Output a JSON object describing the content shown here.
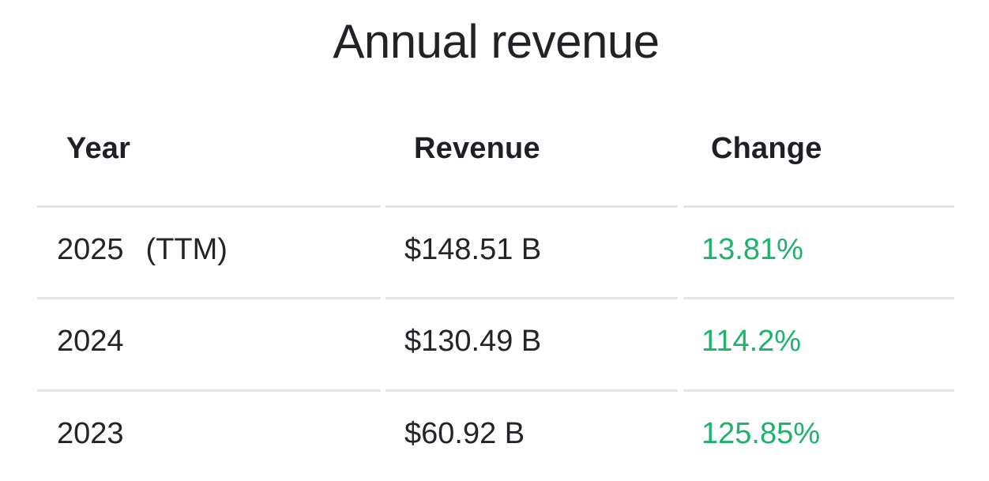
{
  "chart_data": {
    "type": "table",
    "title": "Annual revenue",
    "columns": [
      "Year",
      "Revenue",
      "Change"
    ],
    "rows": [
      {
        "year": "2025",
        "year_suffix": "(TTM)",
        "revenue": "$148.51 B",
        "change": "13.81%"
      },
      {
        "year": "2024",
        "year_suffix": "",
        "revenue": "$130.49 B",
        "change": "114.2%"
      },
      {
        "year": "2023",
        "year_suffix": "",
        "revenue": "$60.92 B",
        "change": "125.85%"
      }
    ],
    "colors": {
      "text": "#1f2127",
      "positive_change": "#1fb26b",
      "divider": "#e4e5e8"
    }
  }
}
